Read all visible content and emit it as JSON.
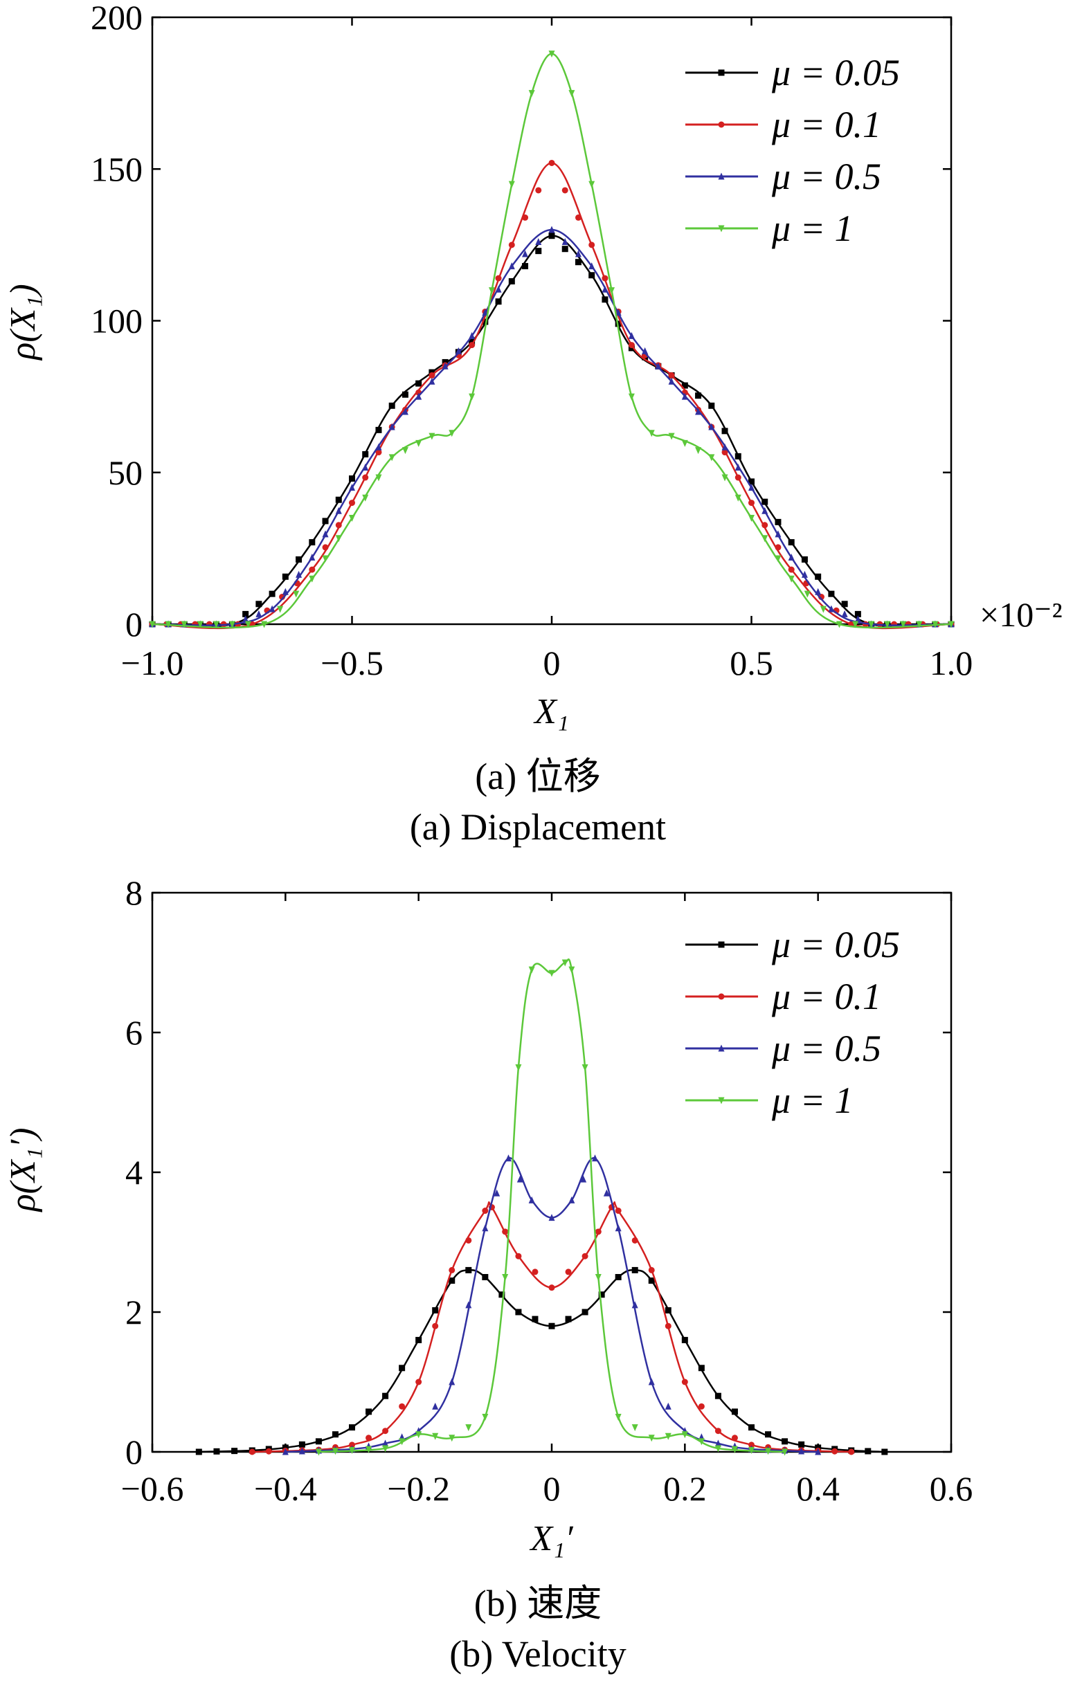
{
  "chart_data": [
    {
      "type": "line",
      "xlabel": "X₁",
      "ylabel": "ρ(X₁)",
      "x_multiplier": "×10⁻²",
      "xlim": [
        -1.0,
        1.0
      ],
      "ylim": [
        0,
        200
      ],
      "xticks": [
        "−1.0",
        "−0.5",
        "0",
        "0.5",
        "1.0"
      ],
      "yticks": [
        "0",
        "50",
        "100",
        "150",
        "200"
      ],
      "caption_cn": "(a)  位移",
      "caption_en": "(a)  Displacement",
      "legend_position": "top-right",
      "series": [
        {
          "name": "μ = 0.05",
          "color": "#000000",
          "marker": "square",
          "x": [
            -1.0,
            -0.8,
            -0.7,
            -0.6,
            -0.5,
            -0.4,
            -0.3,
            -0.2,
            -0.1,
            0.0,
            0.1,
            0.2,
            0.3,
            0.4,
            0.5,
            0.6,
            0.7,
            0.8,
            1.0
          ],
          "y": [
            0,
            0,
            10,
            27,
            48,
            72,
            83,
            93,
            113,
            128,
            115,
            91,
            82,
            72,
            47,
            27,
            10,
            0,
            0
          ]
        },
        {
          "name": "μ = 0.1",
          "color": "#d42020",
          "marker": "circle",
          "x": [
            -1.0,
            -0.75,
            -0.6,
            -0.5,
            -0.4,
            -0.3,
            -0.2,
            -0.1,
            0.0,
            0.1,
            0.2,
            0.3,
            0.4,
            0.5,
            0.6,
            0.75,
            1.0
          ],
          "y": [
            0,
            0,
            18,
            40,
            65,
            82,
            92,
            125,
            152,
            125,
            92,
            82,
            65,
            40,
            18,
            0,
            0
          ]
        },
        {
          "name": "μ = 0.5",
          "color": "#3030a0",
          "marker": "triangle-up",
          "x": [
            -1.0,
            -0.8,
            -0.7,
            -0.6,
            -0.5,
            -0.4,
            -0.3,
            -0.2,
            -0.1,
            0.0,
            0.1,
            0.2,
            0.3,
            0.4,
            0.5,
            0.6,
            0.7,
            0.8,
            1.0
          ],
          "y": [
            0,
            0,
            5,
            22,
            45,
            65,
            80,
            95,
            118,
            130,
            118,
            95,
            80,
            65,
            45,
            22,
            5,
            0,
            0
          ]
        },
        {
          "name": "μ = 1",
          "color": "#5cc83a",
          "marker": "triangle-down",
          "x": [
            -1.0,
            -0.72,
            -0.6,
            -0.5,
            -0.4,
            -0.3,
            -0.25,
            -0.2,
            -0.15,
            -0.1,
            -0.05,
            0.0,
            0.05,
            0.1,
            0.15,
            0.2,
            0.25,
            0.3,
            0.4,
            0.5,
            0.6,
            0.72,
            1.0
          ],
          "y": [
            0,
            0,
            15,
            35,
            55,
            62,
            63,
            75,
            110,
            145,
            175,
            188,
            175,
            145,
            110,
            75,
            63,
            62,
            55,
            35,
            15,
            0,
            0
          ]
        }
      ]
    },
    {
      "type": "line",
      "xlabel": "X₁′",
      "ylabel": "ρ(X₁′)",
      "xlim": [
        -0.6,
        0.6
      ],
      "ylim": [
        0,
        8
      ],
      "xticks": [
        "−0.6",
        "−0.4",
        "−0.2",
        "0",
        "0.2",
        "0.4",
        "0.6"
      ],
      "yticks": [
        "0",
        "2",
        "4",
        "6",
        "8"
      ],
      "caption_cn": "(b)  速度",
      "caption_en": "(b)  Velocity",
      "legend_position": "top-right",
      "series": [
        {
          "name": "μ = 0.05",
          "color": "#000000",
          "marker": "square",
          "x": [
            -0.53,
            -0.45,
            -0.4,
            -0.35,
            -0.3,
            -0.25,
            -0.2,
            -0.15,
            -0.125,
            -0.1,
            -0.05,
            0.0,
            0.05,
            0.1,
            0.125,
            0.15,
            0.2,
            0.25,
            0.3,
            0.35,
            0.4,
            0.45,
            0.5
          ],
          "y": [
            0,
            0.02,
            0.06,
            0.15,
            0.35,
            0.8,
            1.6,
            2.45,
            2.6,
            2.5,
            2.0,
            1.8,
            2.0,
            2.5,
            2.6,
            2.45,
            1.6,
            0.8,
            0.35,
            0.15,
            0.06,
            0.02,
            0
          ]
        },
        {
          "name": "μ = 0.1",
          "color": "#d42020",
          "marker": "circle",
          "x": [
            -0.45,
            -0.35,
            -0.3,
            -0.25,
            -0.2,
            -0.15,
            -0.1,
            -0.09,
            -0.05,
            0.0,
            0.05,
            0.09,
            0.1,
            0.15,
            0.2,
            0.25,
            0.3,
            0.35,
            0.45
          ],
          "y": [
            0,
            0.03,
            0.1,
            0.3,
            1.0,
            2.6,
            3.45,
            3.5,
            2.8,
            2.35,
            2.8,
            3.5,
            3.45,
            2.6,
            1.0,
            0.3,
            0.1,
            0.03,
            0
          ]
        },
        {
          "name": "μ = 0.5",
          "color": "#3030a0",
          "marker": "triangle-up",
          "x": [
            -0.4,
            -0.3,
            -0.25,
            -0.2,
            -0.15,
            -0.1,
            -0.065,
            -0.03,
            0.0,
            0.03,
            0.065,
            0.1,
            0.15,
            0.2,
            0.25,
            0.3,
            0.4
          ],
          "y": [
            0,
            0.04,
            0.12,
            0.3,
            1.0,
            3.2,
            4.2,
            3.6,
            3.35,
            3.6,
            4.2,
            3.2,
            1.0,
            0.3,
            0.12,
            0.04,
            0
          ]
        },
        {
          "name": "μ = 1",
          "color": "#5cc83a",
          "marker": "triangle-down",
          "x": [
            -0.35,
            -0.25,
            -0.2,
            -0.15,
            -0.1,
            -0.07,
            -0.05,
            -0.03,
            0.0,
            0.02,
            0.03,
            0.05,
            0.07,
            0.1,
            0.15,
            0.2,
            0.25,
            0.35
          ],
          "y": [
            0,
            0.05,
            0.25,
            0.2,
            0.5,
            2.5,
            5.5,
            6.9,
            6.85,
            7.0,
            6.9,
            5.5,
            2.5,
            0.5,
            0.2,
            0.25,
            0.05,
            0
          ]
        }
      ]
    }
  ]
}
